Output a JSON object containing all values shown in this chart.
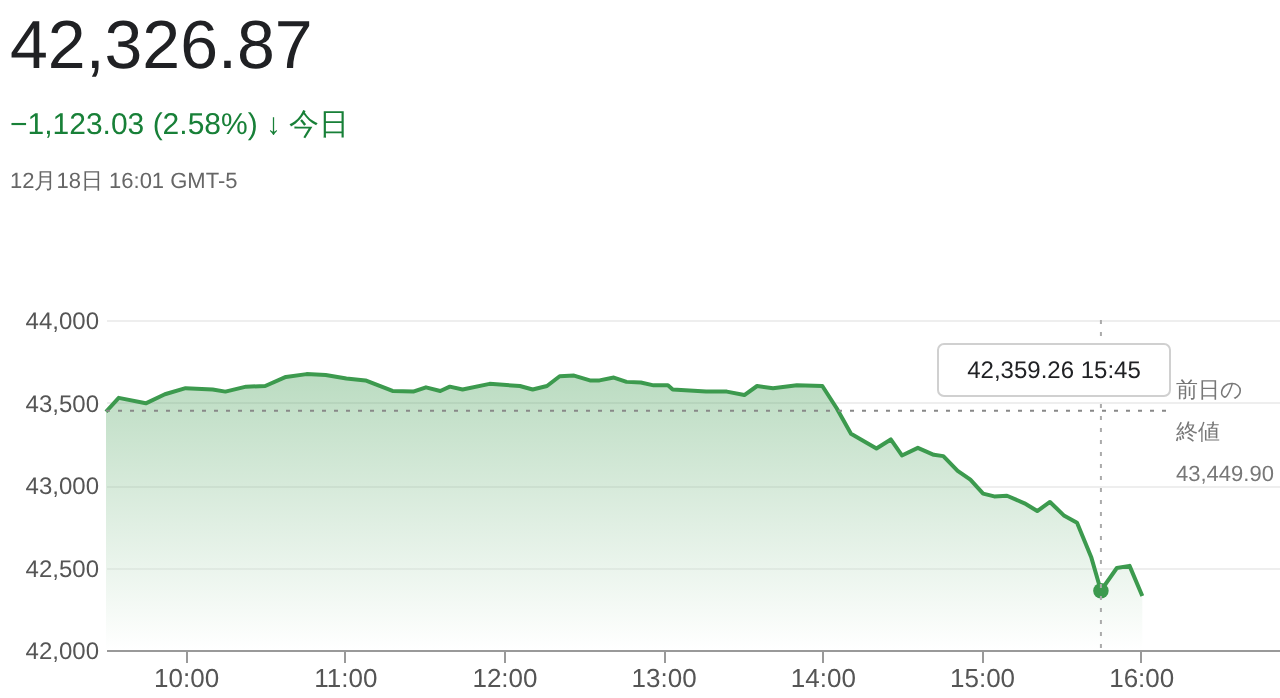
{
  "chart_data": {
    "type": "area",
    "title": "42,326.87",
    "subtitle": "−1,123.03 (2.58%) ↓ 今日",
    "annotations": [
      "12月18日 16:01 GMT-5",
      "42,359.26 15:45"
    ],
    "x": [
      9.5,
      9.58,
      9.75,
      9.87,
      10.0,
      10.17,
      10.25,
      10.38,
      10.5,
      10.63,
      10.76,
      10.88,
      11.01,
      11.13,
      11.3,
      11.43,
      11.51,
      11.6,
      11.66,
      11.74,
      11.91,
      12.1,
      12.18,
      12.27,
      12.35,
      12.44,
      12.54,
      12.6,
      12.69,
      12.77,
      12.86,
      12.94,
      13.03,
      13.06,
      13.27,
      13.4,
      13.51,
      13.59,
      13.69,
      13.84,
      14.0,
      14.09,
      14.18,
      14.34,
      14.43,
      14.5,
      14.6,
      14.7,
      14.76,
      14.85,
      14.93,
      15.01,
      15.08,
      15.16,
      15.27,
      15.35,
      15.43,
      15.52,
      15.6,
      15.69,
      15.75,
      15.85,
      15.93,
      16.01
    ],
    "series": [
      {
        "color": "#3c9a4e",
        "values": [
          43444,
          43528,
          43495,
          43550,
          43587,
          43579,
          43566,
          43596,
          43600,
          43655,
          43672,
          43667,
          43646,
          43634,
          43570,
          43566,
          43592,
          43570,
          43596,
          43579,
          43613,
          43600,
          43579,
          43600,
          43659,
          43663,
          43634,
          43634,
          43651,
          43625,
          43621,
          43604,
          43604,
          43579,
          43566,
          43566,
          43545,
          43600,
          43587,
          43604,
          43600,
          43465,
          43310,
          43221,
          43276,
          43179,
          43225,
          43183,
          43175,
          43086,
          43032,
          42948,
          42931,
          42935,
          42889,
          42842,
          42897,
          42813,
          42771,
          42560,
          42359.26,
          42497,
          42510,
          42326.87
        ]
      },
      {
        "type": "scatter",
        "marker": "circle",
        "color": "#3c9a4e",
        "x": [
          15.75
        ],
        "values": [
          42359.26
        ]
      }
    ],
    "xlim": [
      9.5,
      16.875
    ],
    "xticks": [
      {
        "value": 10,
        "label": "10:00"
      },
      {
        "value": 11,
        "label": "11:00"
      },
      {
        "value": 12,
        "label": "12:00"
      },
      {
        "value": 13,
        "label": "13:00"
      },
      {
        "value": 14,
        "label": "14:00"
      },
      {
        "value": 15,
        "label": "15:00"
      },
      {
        "value": 16,
        "label": "16:00"
      }
    ],
    "ylim": [
      42000,
      44000
    ],
    "yticks": [
      {
        "value": 42000,
        "label": "42,000"
      },
      {
        "value": 42500,
        "label": "42,500"
      },
      {
        "value": 43000,
        "label": "43,000"
      },
      {
        "value": 43500,
        "label": "43,500"
      },
      {
        "value": 44000,
        "label": "44,000"
      }
    ],
    "grid": "y",
    "marker": "none",
    "line_style": "solid",
    "ref_lines": [
      {
        "axis": "y",
        "value": 43449.9,
        "label": "前日の終値\n43,449.90",
        "line_style": "dotted",
        "color": "#888888"
      },
      {
        "axis": "x",
        "value": 15.75,
        "line_style": "dotted",
        "color": "#aaaaaa"
      }
    ]
  }
}
